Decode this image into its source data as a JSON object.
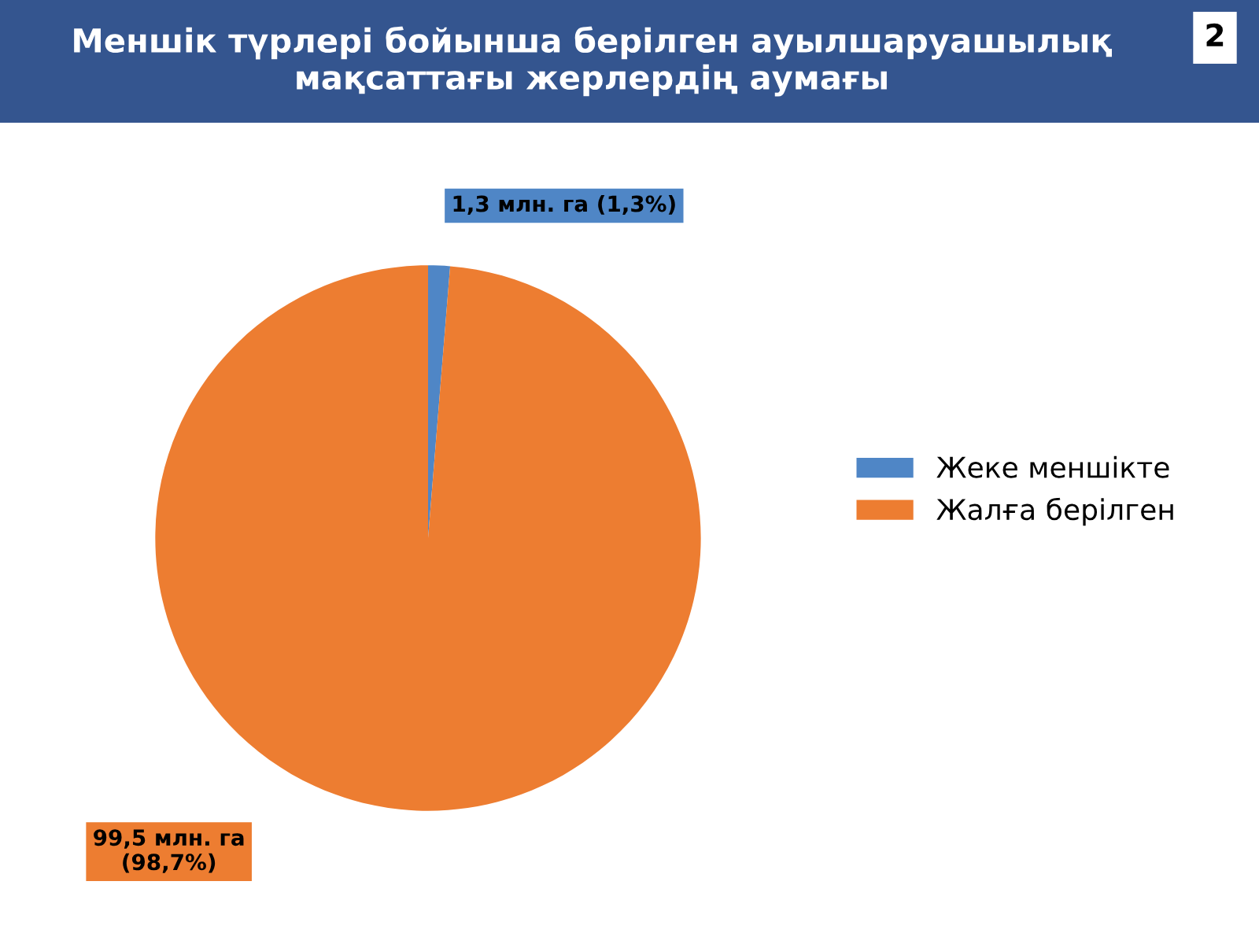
{
  "chart_data": {
    "type": "pie",
    "title": "Меншік түрлері бойынша берілген ауылшаруашылық мақсаттағы жерлердің аумағы",
    "categories": [
      "Жеке меншікте",
      "Жалға берілген"
    ],
    "values": [
      1.3,
      99.5
    ],
    "colors": [
      "#4f86c6",
      "#ed7d31"
    ],
    "value_labels": [
      "1,3 млн. га (1,3%)",
      "99,5 млн. га\n(98,7%)"
    ],
    "legend": "right",
    "annotations": [
      "2"
    ]
  }
}
